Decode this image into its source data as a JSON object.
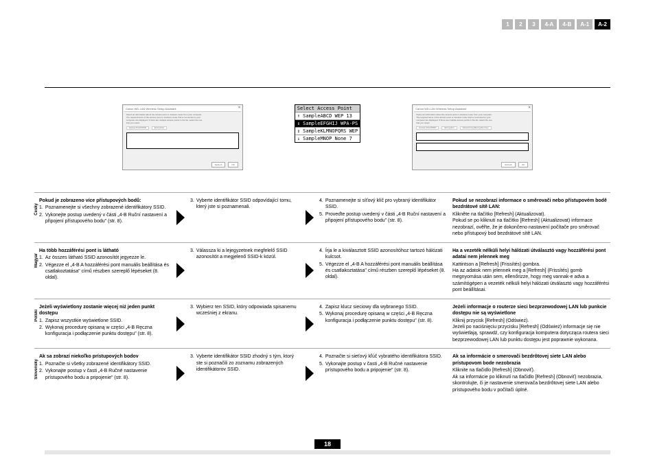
{
  "nav": {
    "tabs": [
      "1",
      "2",
      "3",
      "4-A",
      "4-B",
      "A-1",
      "A-2"
    ],
    "active": "A-2"
  },
  "figures": {
    "dialog_title": "Canon WD-LAN Wireless Setup Assistant",
    "dialog_blurb": "Select an information about the access point or wireless router from your computer.\nThe required items of the access point or wireless router that is connected to your\ncomputer are displayed. If there are multiple access points in the list, select the one\nthat you noted.",
    "tabs_a": [
      "Access Point/SSID",
      "Encryption"
    ],
    "tabs_b": [
      "Access Point/SSID",
      "Encryption",
      "Network Key/Encryption Key"
    ],
    "btn_refresh": "Refresh",
    "btn_next": "OK",
    "ap_header": "Select Access Point",
    "ap_rows": [
      {
        "text": "↑  SampleABCD WEP 13",
        "sel": false
      },
      {
        "text": "↕  SampleEFGHIJ WPA-PS",
        "sel": true
      },
      {
        "text": "↕  SampleKLMNOPQRS WEP ",
        "sel": false
      },
      {
        "text": "↓  SampleMNOP None 7",
        "sel": false
      }
    ]
  },
  "sections": [
    {
      "lang": "Česky",
      "left_heading": "Pokud je zobrazeno více přístupových bodů:",
      "left_items": [
        "Poznamenejte si všechny zobrazené identifikátory SSID.",
        "Vykonejte postup uvedený v části „4-B Ruční nastavení a připojení přístupového bodu\" (str. 8)."
      ],
      "mid1_items": [
        {
          "n": "3.",
          "t": "Vyberte identifikátor SSID odpovídající tomu, který jste si poznamenali."
        }
      ],
      "mid2_items": [
        {
          "n": "4.",
          "t": "Poznamenejte si síťový klíč pro vybraný identifikátor SSID."
        },
        {
          "n": "5.",
          "t": "Proveďte postup uvedený v části „4-B Ruční nastavení a připojení přístupového bodu\" (str. 8)."
        }
      ],
      "right_heading": "Pokud se nezobrazí informace o směrovači nebo přístupovém bodě bezdrátové sítě LAN:",
      "right_lines": [
        "Klikněte na tlačítko [Refresh] (Aktualizovat).",
        "Pokud se po kliknutí na tlačítko [Refresh] (Aktualizovat) informace nezobrazí, ověřte, že je dokončeno nastavení počítače pro směrovač nebo přístupový bod bezdrátové sítě LAN."
      ]
    },
    {
      "lang": "Magyar",
      "left_heading": "Ha több hozzáférési pont is látható",
      "left_items": [
        "Az összes látható SSID azonosítót jegyezze le.",
        "Végezze el „4-B A hozzáférési pont manuális beállítása és csatlakoztatása\" című részben szereplő lépéseket (8. oldal)."
      ],
      "mid1_items": [
        {
          "n": "3.",
          "t": "Válassza ki a lejegyzetnek megfelelő SSID azonosítót a megjelenő SSID-k közül."
        }
      ],
      "mid2_items": [
        {
          "n": "4.",
          "t": "Írja le a kiválasztott SSID azonosítóhoz tartozó hálózati kulcsot."
        },
        {
          "n": "5.",
          "t": "Végezze el „4-B A hozzáférési pont manuális beállítása és csatlakoztatása\" című részben szereplő lépéseket (8. oldal)."
        }
      ],
      "right_heading": "Ha a vezeték nélküli helyi hálózati útválasztó vagy hozzáférési pont adatai nem jelennek meg",
      "right_lines": [
        "Kattintson a [Refresh] (Frissítés) gombra.",
        "Ha az adatok nem jelennek meg a [Refresh] (Frissítés) gomb megnyomása után sem, ellenőrizze, hogy meg vannak-e adva a számítógépen a vezeték nélküli helyi hálózati útválasztó vagy hozzáférési pont beállításai."
      ]
    },
    {
      "lang": "Polski",
      "left_heading": "Jeżeli wyświetlony zostanie więcej niż jeden punkt dostępu",
      "left_items": [
        "Zapisz wszystkie wyświetlone SSID.",
        "Wykonaj procedurę opisaną w części „4-B Ręczna konfiguracja i podłączenie punktu dostępu\" (str. 8)."
      ],
      "mid1_items": [
        {
          "n": "3.",
          "t": "Wybierz ten SSID, który odpowiada spisanemu wcześniej z ekranu."
        }
      ],
      "mid2_items": [
        {
          "n": "4.",
          "t": "Zapisz klucz sieciowy dla wybranego SSID."
        },
        {
          "n": "5.",
          "t": "Wykonaj procedurę opisaną w części „4-B Ręczna konfiguracja i podłączenie punktu dostępu\" (str. 8)."
        }
      ],
      "right_heading": "Jeżeli informacje o routerze sieci bezprzewodowej LAN lub punkcie dostępu nie są wyświetlone",
      "right_lines": [
        "Kliknij przycisk [Refresh] (Odśwież).",
        "Jeżeli po naciśnięciu przycisku [Refresh] (Odśwież) informacje się nie wyświetlają, sprawdź, czy konfiguracja komputera dotycząca routera sieci bezprzewodowej LAN lub punktu dostępu jest poprawnie wykonana."
      ]
    },
    {
      "lang": "Slovensky",
      "left_heading": "Ak sa zobrazí niekoľko prístupových bodov",
      "left_items": [
        "Poznačte si všetky zobrazené identifikátory SSID.",
        "Vykonajte postup v časti „4-B Ručné nastavenie prístupového bodu a pripojenie\" (str. 8)."
      ],
      "mid1_items": [
        {
          "n": "3.",
          "t": "Vyberte identifikátor SSID zhodný s tým, ktorý ste si poznačili zo zoznamu zobrazených identifikátorov SSID."
        }
      ],
      "mid2_items": [
        {
          "n": "4.",
          "t": "Poznačte si sieťový kľúč vybratého identifikátora SSID."
        },
        {
          "n": "5.",
          "t": "Vykonajte postup v časti „4-B Ručné nastavenie prístupového bodu a pripojenie\" (str. 8)."
        }
      ],
      "right_heading": "Ak sa informácie o smerovači bezdrôtovej siete LAN alebo prístupovom bode nezobrazia",
      "right_lines": [
        "Kliknite na tlačidlo [Refresh] (Obnoviť).",
        "Ak sa informácie po kliknutí na tlačidlo [Refresh] (Obnoviť) nezobrazia, skontrolujte, či je nastavenie smerovača bezdrôtovej siete LAN alebo prístupového bodu v počítači úplné."
      ]
    }
  ],
  "page_number": "18"
}
